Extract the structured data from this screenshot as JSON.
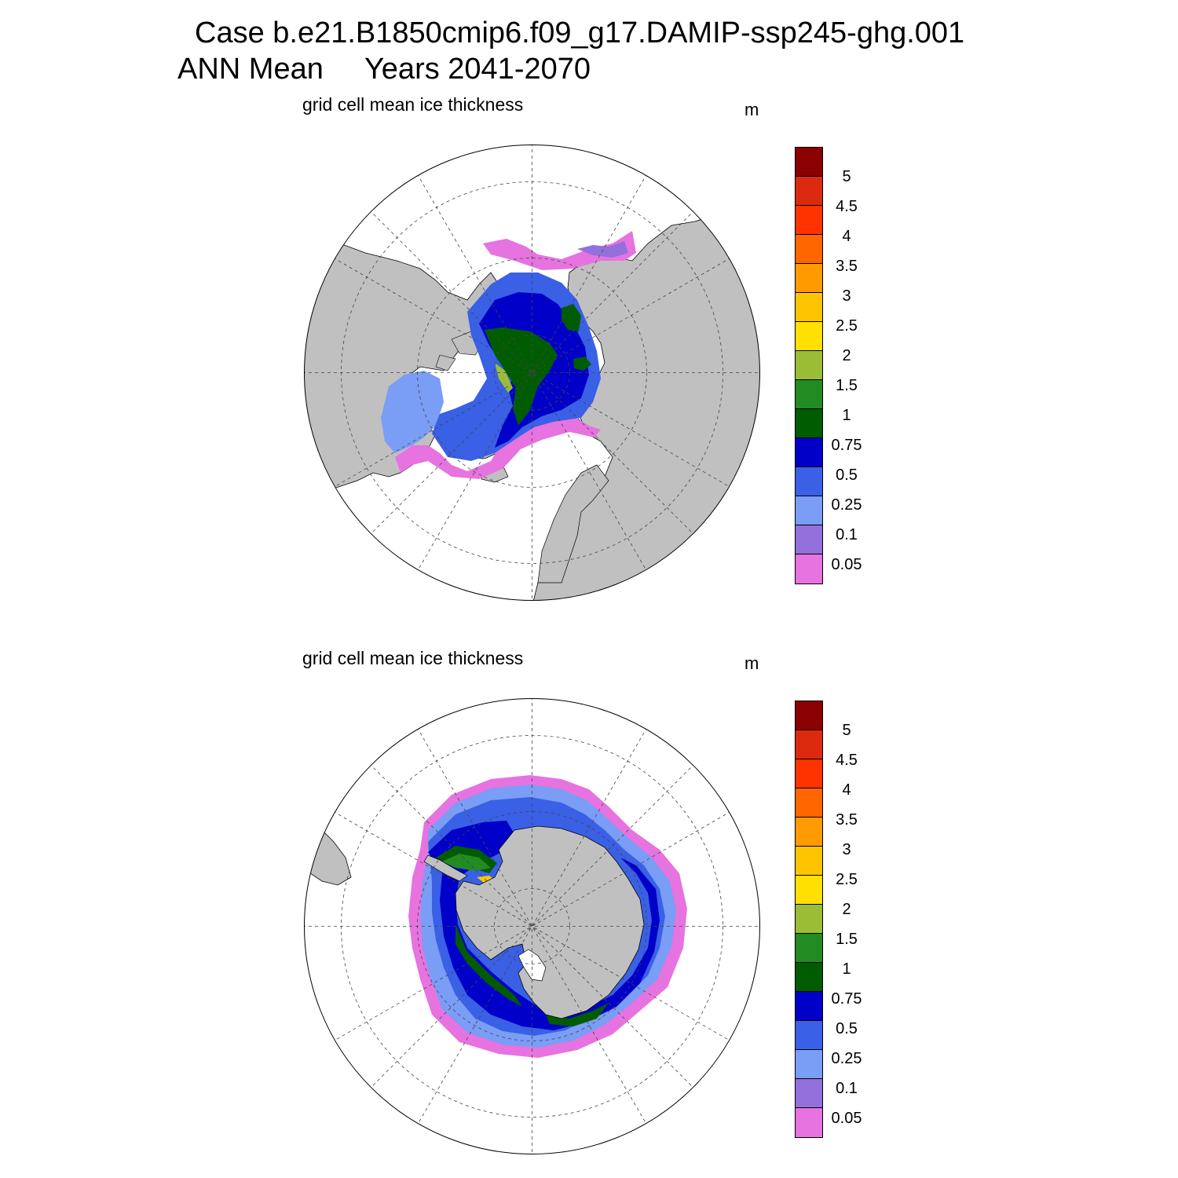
{
  "title": {
    "line1": "Case b.e21.B1850cmip6.f09_g17.DAMIP-ssp245-ghg.001",
    "line2": "ANN Mean     Years 2041-2070"
  },
  "panels": [
    {
      "id": "north",
      "label": "grid cell mean ice thickness",
      "units": "m"
    },
    {
      "id": "south",
      "label": "grid cell mean ice thickness",
      "units": "m"
    }
  ],
  "colorbar": {
    "levels": [
      "0.05",
      "0.1",
      "0.25",
      "0.5",
      "0.75",
      "1",
      "1.5",
      "2",
      "2.5",
      "3",
      "3.5",
      "4",
      "4.5",
      "5"
    ],
    "colors": [
      "#e673e0",
      "#9370db",
      "#7a9df5",
      "#3a60e6",
      "#0000c8",
      "#005c00",
      "#228b22",
      "#9bbd35",
      "#ffe000",
      "#ffc400",
      "#ff9a00",
      "#ff6600",
      "#ff3300",
      "#dc2a10",
      "#8b0000"
    ]
  },
  "map_colors": {
    "land": "#c0c0c0",
    "ocean": "#ffffff",
    "coast": "#000000",
    "grid": "#444444"
  }
}
